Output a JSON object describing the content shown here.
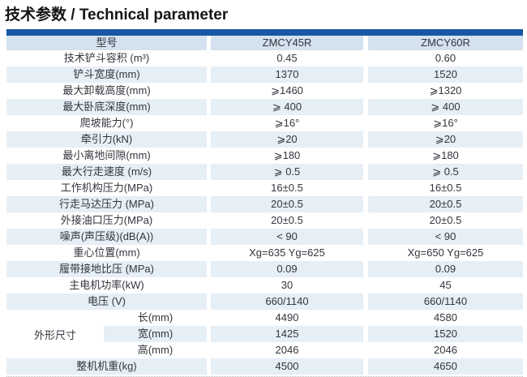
{
  "title": "技术参数 / Technical parameter",
  "colors": {
    "top_bar": "#1757a3",
    "header_bg": "#d4e1ee",
    "stripe_bg": "#e6eef6"
  },
  "table": {
    "header": {
      "col_label": "型号",
      "model_1": "ZMCY45R",
      "model_2": "ZMCY60R"
    },
    "rows": [
      {
        "label": "技术铲斗容积 (m³)",
        "zmcy45r": "0.45",
        "zmcy60r": "0.60"
      },
      {
        "label": "铲斗宽度(mm)",
        "zmcy45r": "1370",
        "zmcy60r": "1520"
      },
      {
        "label": "最大卸载高度(mm)",
        "zmcy45r": "⩾1460",
        "zmcy60r": "⩾1320"
      },
      {
        "label": "最大卧底深度(mm)",
        "zmcy45r": "⩾ 400",
        "zmcy60r": "⩾ 400"
      },
      {
        "label": "爬坡能力(°)",
        "zmcy45r": "⩾16°",
        "zmcy60r": "⩾16°"
      },
      {
        "label": "牵引力(kN)",
        "zmcy45r": "⩾20",
        "zmcy60r": "⩾20"
      },
      {
        "label": "最小离地间隙(mm)",
        "zmcy45r": "⩾180",
        "zmcy60r": "⩾180"
      },
      {
        "label": "最大行走速度 (m/s)",
        "zmcy45r": "⩾ 0.5",
        "zmcy60r": "⩾ 0.5"
      },
      {
        "label": "工作机构压力(MPa)",
        "zmcy45r": "16±0.5",
        "zmcy60r": "16±0.5"
      },
      {
        "label": "行走马达压力 (MPa)",
        "zmcy45r": "20±0.5",
        "zmcy60r": "20±0.5"
      },
      {
        "label": "外接油口压力(MPa)",
        "zmcy45r": "20±0.5",
        "zmcy60r": "20±0.5"
      },
      {
        "label": "噪声(声压级)(dB(A))",
        "zmcy45r": "< 90",
        "zmcy60r": "< 90"
      },
      {
        "label": "重心位置(mm)",
        "zmcy45r": "Xg=635 Yg=625",
        "zmcy60r": "Xg=650 Yg=625"
      },
      {
        "label": "履带接地比压 (MPa)",
        "zmcy45r": "0.09",
        "zmcy60r": "0.09"
      },
      {
        "label": "主电机功率(kW)",
        "zmcy45r": "30",
        "zmcy60r": "45"
      },
      {
        "label": "电压 (V)",
        "zmcy45r": "660/1140",
        "zmcy60r": "660/1140"
      }
    ],
    "dimensions": {
      "group_label": "外形尺寸",
      "rows": [
        {
          "label": "长(mm)",
          "zmcy45r": "4490",
          "zmcy60r": "4580"
        },
        {
          "label": "宽(mm)",
          "zmcy45r": "1425",
          "zmcy60r": "1520"
        },
        {
          "label": "高(mm)",
          "zmcy45r": "2046",
          "zmcy60r": "2046"
        }
      ]
    },
    "weight_row": {
      "label": "整机机重(kg)",
      "zmcy45r": "4500",
      "zmcy60r": "4650"
    }
  }
}
